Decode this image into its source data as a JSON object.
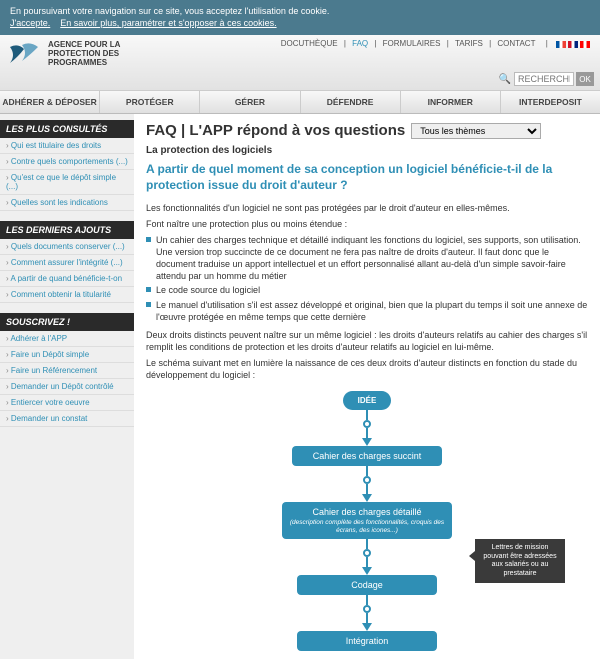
{
  "cookie": {
    "line1": "En poursuivant votre navigation sur ce site, vous acceptez l'utilisation de cookie.",
    "accept": "J'accepte.",
    "more": "En savoir plus, paramétrer et s'opposer à ces cookies."
  },
  "logo": {
    "l1": "AGENCE POUR LA",
    "l2": "PROTECTION DES",
    "l3": "PROGRAMMES"
  },
  "topnav": {
    "items": [
      "DOCUTHÈQUE",
      "FAQ",
      "FORMULAIRES",
      "TARIFS",
      "CONTACT"
    ],
    "active_index": 1
  },
  "flags": [
    {
      "name": "fr",
      "colors": [
        "#0055a4",
        "#ffffff",
        "#ef4135"
      ]
    },
    {
      "name": "en",
      "colors": [
        "#cf142b",
        "#ffffff",
        "#00247d"
      ]
    },
    {
      "name": "ch",
      "colors": [
        "#ff0000",
        "#ffffff",
        "#ff0000"
      ]
    }
  ],
  "search": {
    "placeholder": "RECHERCHE",
    "button": "OK"
  },
  "mainnav": [
    "ADHÉRER & DÉPOSER",
    "PROTÉGER",
    "GÉRER",
    "DÉFENDRE",
    "INFORMER",
    "INTERDEPOSIT"
  ],
  "sidebar": {
    "blocks": [
      {
        "title": "LES PLUS CONSULTÉS",
        "items": [
          "Qui est titulaire des droits",
          "Contre quels comportements (...)",
          "Qu'est ce que le dépôt simple (...)",
          "Quelles sont les indications"
        ]
      },
      {
        "title": "LES DERNIERS AJOUTS",
        "items": [
          "Quels documents conserver (...)",
          "Comment assurer l'intégrité (...)",
          "A partir de quand bénéficie-t-on",
          "Comment obtenir la titularité"
        ]
      },
      {
        "title": "SOUSCRIVEZ !",
        "items": [
          "Adhérer à l'APP",
          "Faire un Dépôt simple",
          "Faire un Référencement",
          "Demander un Dépôt contrôlé",
          "Entiercer votre oeuvre",
          "Demander un constat"
        ]
      }
    ]
  },
  "content": {
    "faq_title": "FAQ | L'APP répond à vos questions",
    "theme_selected": "Tous les thèmes",
    "subtitle": "La protection des logiciels",
    "question": "A partir de quel moment de sa conception un logiciel bénéficie-t-il de la protection issue du droit d'auteur ?",
    "p1": "Les fonctionnalités d'un logiciel ne sont pas protégées par le droit d'auteur en elles-mêmes.",
    "p2": "Font naître une protection plus ou moins étendue :",
    "bullets": [
      "Un cahier des charges technique et détaillé indiquant les fonctions du logiciel, ses supports, son utilisation. Une version trop succincte de ce document ne fera pas naître de droits d'auteur. Il faut donc que le document traduise un apport intellectuel et un effort personnalisé allant au-delà d'un simple savoir-faire attendu par un homme du métier",
      "Le code source du logiciel",
      "Le manuel d'utilisation s'il est assez développé et original, bien que la plupart du temps il soit une annexe de l'œuvre protégée en même temps que cette dernière"
    ],
    "p3": "Deux droits distincts peuvent naître sur un même logiciel : les droits d'auteurs relatifs au cahier des charges s'il remplit les conditions de protection et les droits d'auteur relatifs au logiciel en lui-même.",
    "p4": "Le schéma suivant met en lumière la naissance de ces deux droits d'auteur distincts en fonction du stade du développement du logiciel :"
  },
  "diagram": {
    "type": "flowchart",
    "node_color": "#2f8fb5",
    "node_text_color": "#ffffff",
    "arrow_color": "#2f8fb5",
    "label_bg": "#3a3a3a",
    "nodes": [
      {
        "id": "idea",
        "label": "IDÉE",
        "width": 48,
        "shape": "pill"
      },
      {
        "id": "cdc1",
        "label": "Cahier des charges succint",
        "width": 150,
        "shape": "box"
      },
      {
        "id": "cdc2",
        "label": "Cahier des charges détaillé",
        "sub": "(description complète des fonctionnalités, croquis des écrans, des icones...)",
        "width": 170,
        "shape": "box"
      },
      {
        "id": "code",
        "label": "Codage",
        "width": 140,
        "shape": "box"
      },
      {
        "id": "integ",
        "label": "Intégration",
        "width": 140,
        "shape": "box"
      }
    ],
    "side_label": "Lettres de mission pouvant être adressées aux salariés ou au prestataire"
  }
}
